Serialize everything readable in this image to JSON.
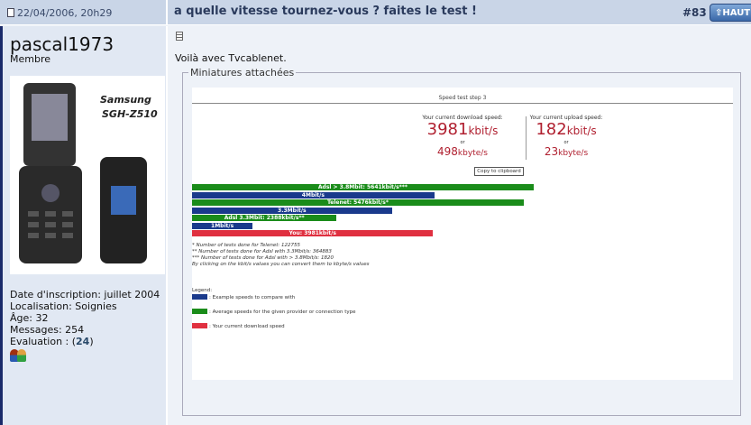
{
  "post": {
    "date": "22/04/2006, 20h29",
    "title": "a quelle vitesse tournez-vous ? faites le test !",
    "number": "#83",
    "top_button": "HAUT"
  },
  "user": {
    "name": "pascal1973",
    "role": "Membre",
    "phone_brand": "Samsung",
    "phone_model": "SGH-Z510",
    "info": {
      "joined": "Date d'inscription: juillet 2004",
      "location": "Localisation: Soignies",
      "age": "Âge: 32",
      "messages": "Messages: 254",
      "evaluation_label": "Evaluation : (",
      "evaluation_value": "24",
      "evaluation_end": ")"
    }
  },
  "message": {
    "text": "Voilà avec Tvcablenet.",
    "attachments_legend": "Miniatures attachées"
  },
  "speedtest": {
    "title": "Speed test step 3",
    "download": {
      "label": "Your current download speed:",
      "kbit": "3981",
      "kbit_unit": "kbit/s",
      "or": "or",
      "kbyte": "498",
      "kbyte_unit": "kbyte/s"
    },
    "upload": {
      "label": "Your current upload speed:",
      "kbit": "182",
      "kbit_unit": "kbit/s",
      "or": "or",
      "kbyte": "23",
      "kbyte_unit": "kbyte/s"
    },
    "copy_button": "Copy to clipboard",
    "bars": [
      {
        "label": "Adsl > 3.8Mbit: 5641kbit/s***",
        "value": 5641,
        "type": "average"
      },
      {
        "label": "4Mbit/s",
        "value": 4000,
        "type": "example"
      },
      {
        "label": "Telenet: 5476kbit/s*",
        "value": 5476,
        "type": "average"
      },
      {
        "label": "3.3Mbit/s",
        "value": 3300,
        "type": "example"
      },
      {
        "label": "Adsl 3.3Mbit: 2388kbit/s**",
        "value": 2388,
        "type": "average"
      },
      {
        "label": "1Mbit/s",
        "value": 1000,
        "type": "example"
      },
      {
        "label": "You: 3981kbit/s",
        "value": 3981,
        "type": "you"
      }
    ],
    "colors": {
      "example": "#1a3a8c",
      "average": "#1a8c1a",
      "you": "#e03040"
    },
    "notes": [
      "* Number of tests done for Telenet: 122755",
      "** Number of tests done for Adsl with 3.3Mbit/s: 364883",
      "*** Number of tests done for Adsl with > 3.8Mbit/s: 1820",
      "By clicking on the kbit/s values you can convert them to kbyte/s values"
    ],
    "legend_title": "Legend:",
    "legend": [
      {
        "type": "example",
        "text": ": Example speeds to compare with"
      },
      {
        "type": "average",
        "text": ": Average speeds for the given provider or connection type"
      },
      {
        "type": "you",
        "text": ": Your current download speed"
      }
    ]
  }
}
